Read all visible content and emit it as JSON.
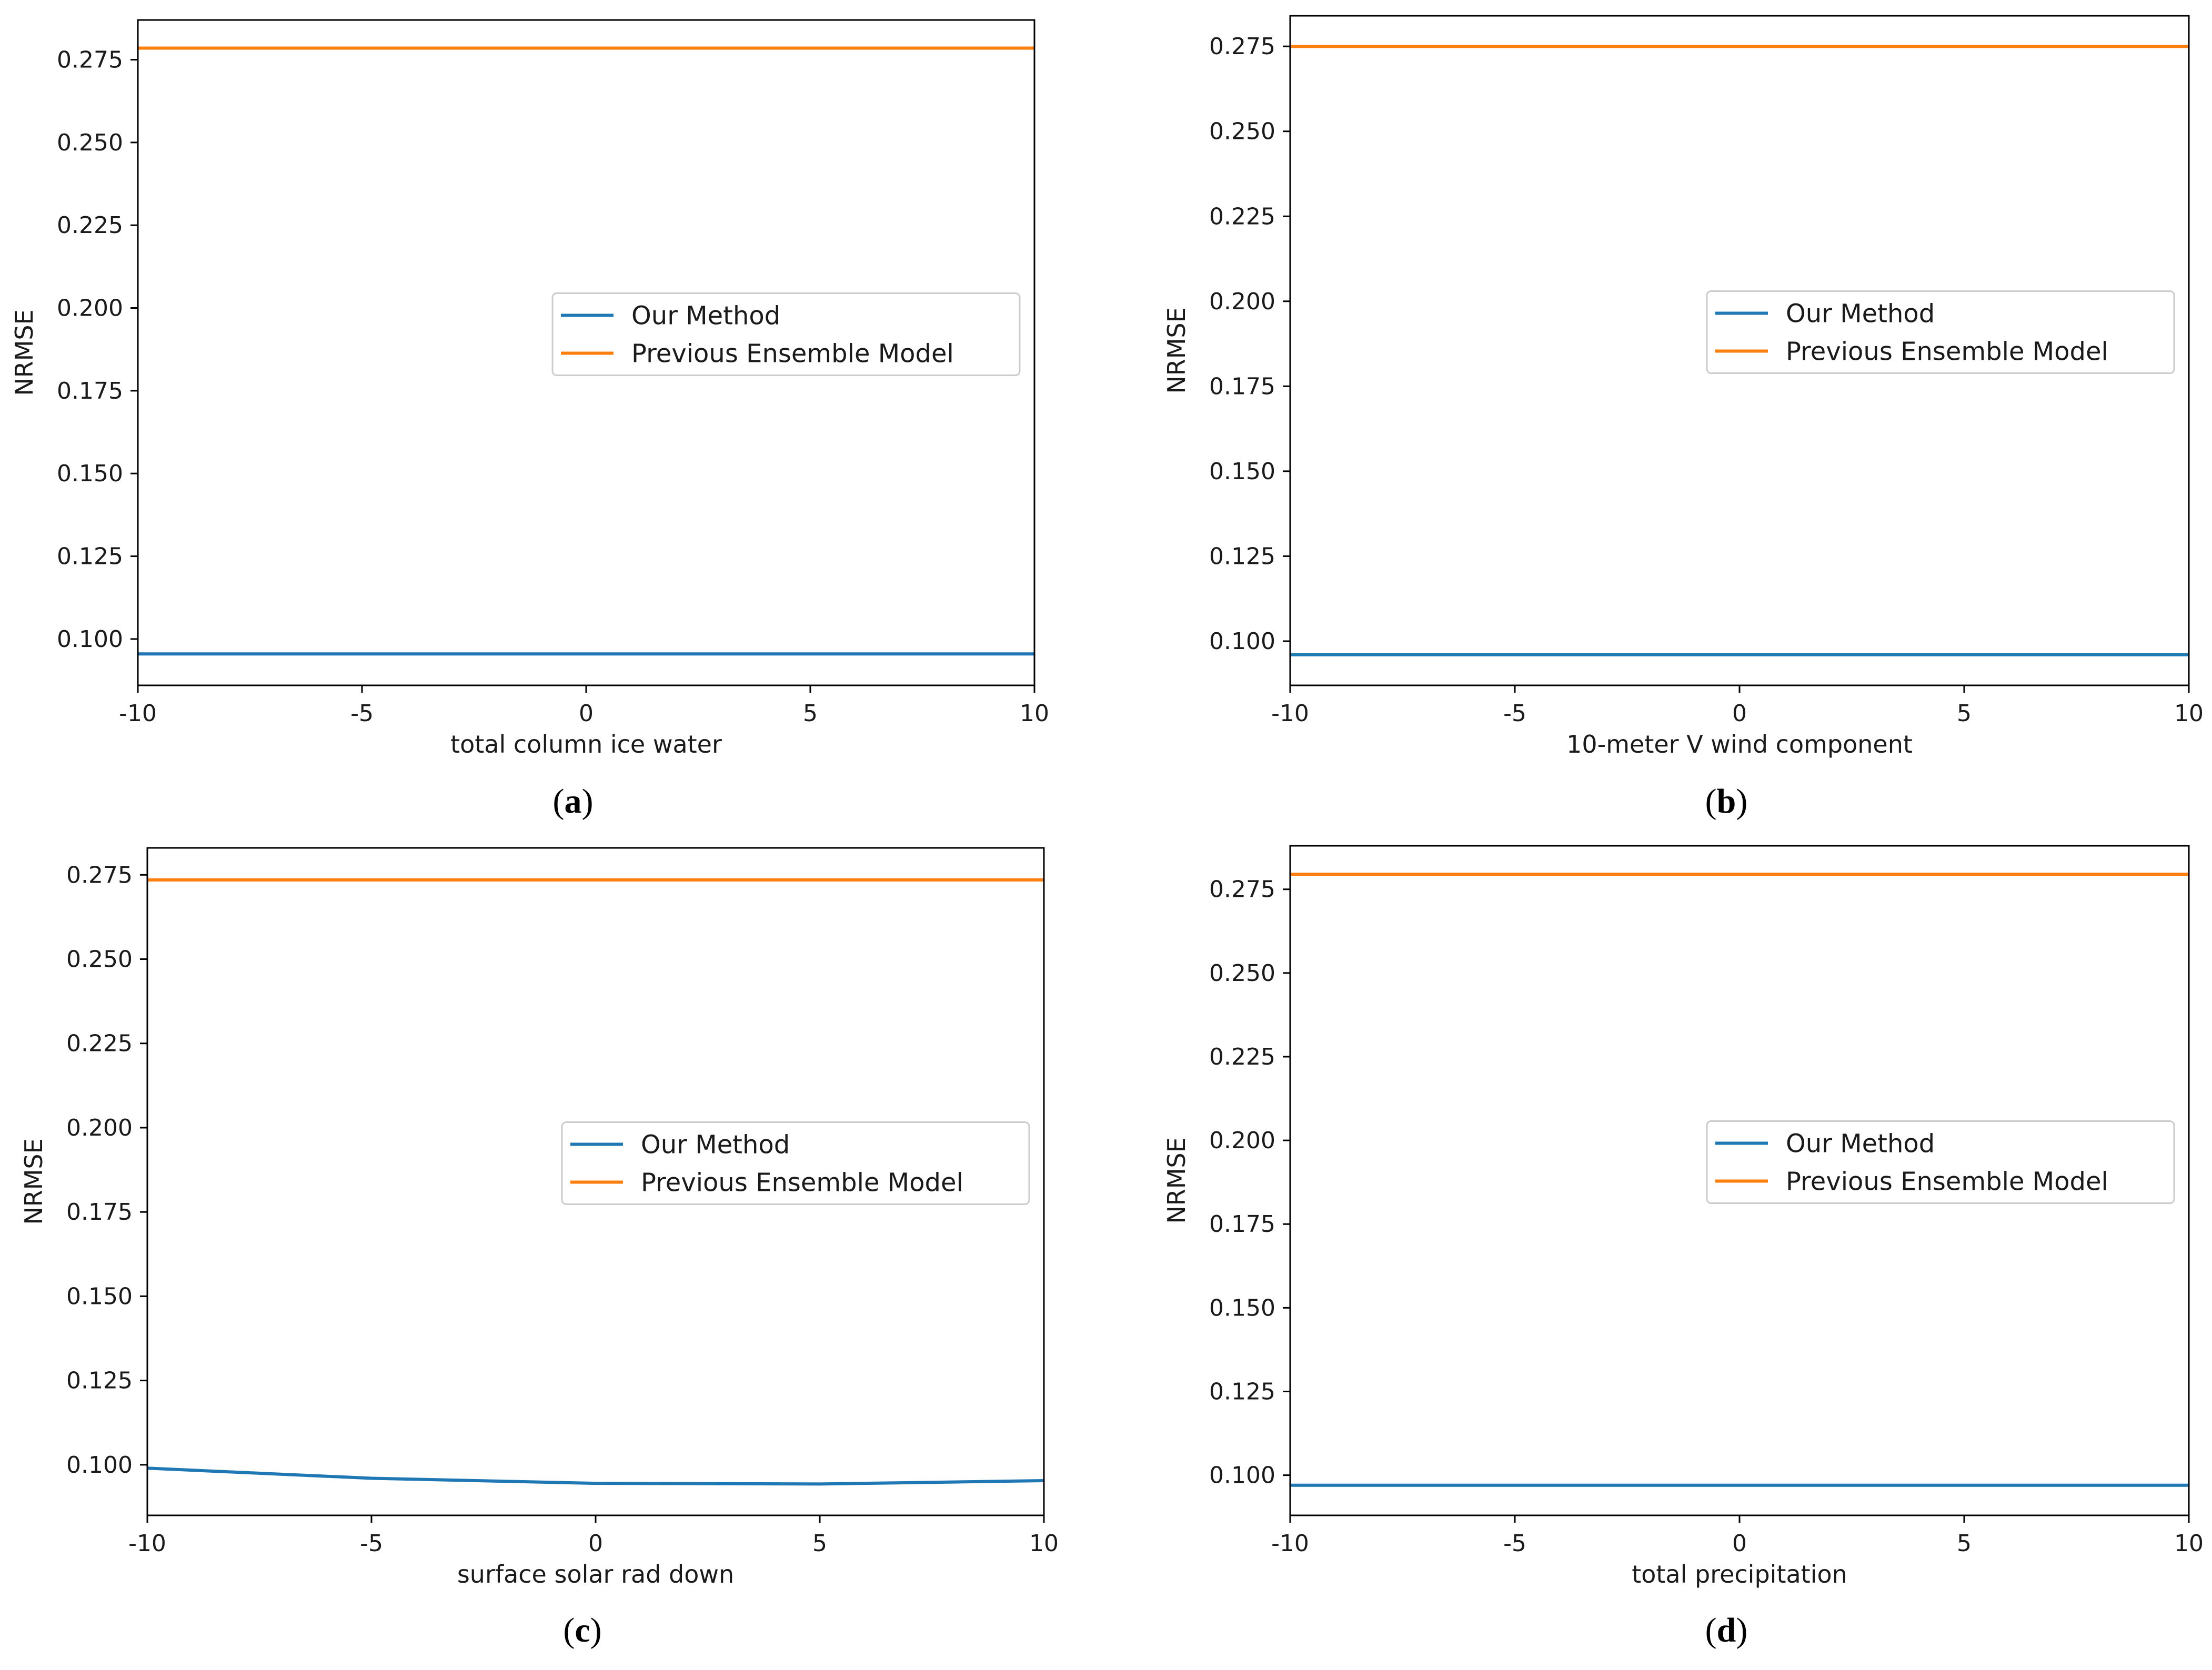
{
  "colors": {
    "our_method": "#1f77b4",
    "previous_ensemble": "#ff7f0e",
    "axes": "#000000",
    "legend_border": "#cccccc"
  },
  "chart_data": [
    {
      "type": "line",
      "panel": "a",
      "caption_letter": "a",
      "xlabel": "total column ice water",
      "ylabel": "NRMSE",
      "x": [
        -10,
        -5,
        0,
        5,
        10
      ],
      "x_tick_labels": [
        "-10",
        "-5",
        "0",
        "5",
        "10"
      ],
      "xlim": [
        -10,
        10
      ],
      "ylim": [
        0.086,
        0.287
      ],
      "y_ticks": [
        0.1,
        0.125,
        0.15,
        0.175,
        0.2,
        0.225,
        0.25,
        0.275
      ],
      "y_tick_labels": [
        "0.100",
        "0.125",
        "0.150",
        "0.175",
        "0.200",
        "0.225",
        "0.250",
        "0.275"
      ],
      "legend_position": "center-right",
      "series": [
        {
          "name": "Our Method",
          "values": [
            0.0955,
            0.0955,
            0.0955,
            0.0955,
            0.0955
          ]
        },
        {
          "name": "Previous Ensemble Model",
          "values": [
            0.2785,
            0.2785,
            0.2785,
            0.2785,
            0.2785
          ]
        }
      ]
    },
    {
      "type": "line",
      "panel": "b",
      "caption_letter": "b",
      "xlabel": "10-meter V wind component",
      "ylabel": "NRMSE",
      "x": [
        -10,
        -5,
        0,
        5,
        10
      ],
      "x_tick_labels": [
        "-10",
        "-5",
        "0",
        "5",
        "10"
      ],
      "xlim": [
        -10,
        10
      ],
      "ylim": [
        0.087,
        0.284
      ],
      "y_ticks": [
        0.1,
        0.125,
        0.15,
        0.175,
        0.2,
        0.225,
        0.25,
        0.275
      ],
      "y_tick_labels": [
        "0.100",
        "0.125",
        "0.150",
        "0.175",
        "0.200",
        "0.225",
        "0.250",
        "0.275"
      ],
      "legend_position": "center-right",
      "series": [
        {
          "name": "Our Method",
          "values": [
            0.096,
            0.096,
            0.096,
            0.096,
            0.096
          ]
        },
        {
          "name": "Previous Ensemble Model",
          "values": [
            0.275,
            0.275,
            0.275,
            0.275,
            0.275
          ]
        }
      ]
    },
    {
      "type": "line",
      "panel": "c",
      "caption_letter": "c",
      "xlabel": "surface solar rad down",
      "ylabel": "NRMSE",
      "x": [
        -10,
        -5,
        0,
        5,
        10
      ],
      "x_tick_labels": [
        "-10",
        "-5",
        "0",
        "5",
        "10"
      ],
      "xlim": [
        -10,
        10
      ],
      "ylim": [
        0.085,
        0.283
      ],
      "y_ticks": [
        0.1,
        0.125,
        0.15,
        0.175,
        0.2,
        0.225,
        0.25,
        0.275
      ],
      "y_tick_labels": [
        "0.100",
        "0.125",
        "0.150",
        "0.175",
        "0.200",
        "0.225",
        "0.250",
        "0.275"
      ],
      "legend_position": "center-right",
      "series": [
        {
          "name": "Our Method",
          "values": [
            0.099,
            0.096,
            0.0945,
            0.0943,
            0.0953
          ]
        },
        {
          "name": "Previous Ensemble Model",
          "values": [
            0.2735,
            0.2735,
            0.2735,
            0.2735,
            0.2735
          ]
        }
      ]
    },
    {
      "type": "line",
      "panel": "d",
      "caption_letter": "d",
      "xlabel": "total precipitation",
      "ylabel": "NRMSE",
      "x": [
        -10,
        -5,
        0,
        5,
        10
      ],
      "x_tick_labels": [
        "-10",
        "-5",
        "0",
        "5",
        "10"
      ],
      "xlim": [
        -10,
        10
      ],
      "ylim": [
        0.088,
        0.288
      ],
      "y_ticks": [
        0.1,
        0.125,
        0.15,
        0.175,
        0.2,
        0.225,
        0.25,
        0.275
      ],
      "y_tick_labels": [
        "0.100",
        "0.125",
        "0.150",
        "0.175",
        "0.200",
        "0.225",
        "0.250",
        "0.275"
      ],
      "legend_position": "center-right",
      "series": [
        {
          "name": "Our Method",
          "values": [
            0.097,
            0.097,
            0.097,
            0.097,
            0.097
          ]
        },
        {
          "name": "Previous Ensemble Model",
          "values": [
            0.2795,
            0.2795,
            0.2795,
            0.2795,
            0.2795
          ]
        }
      ]
    }
  ]
}
